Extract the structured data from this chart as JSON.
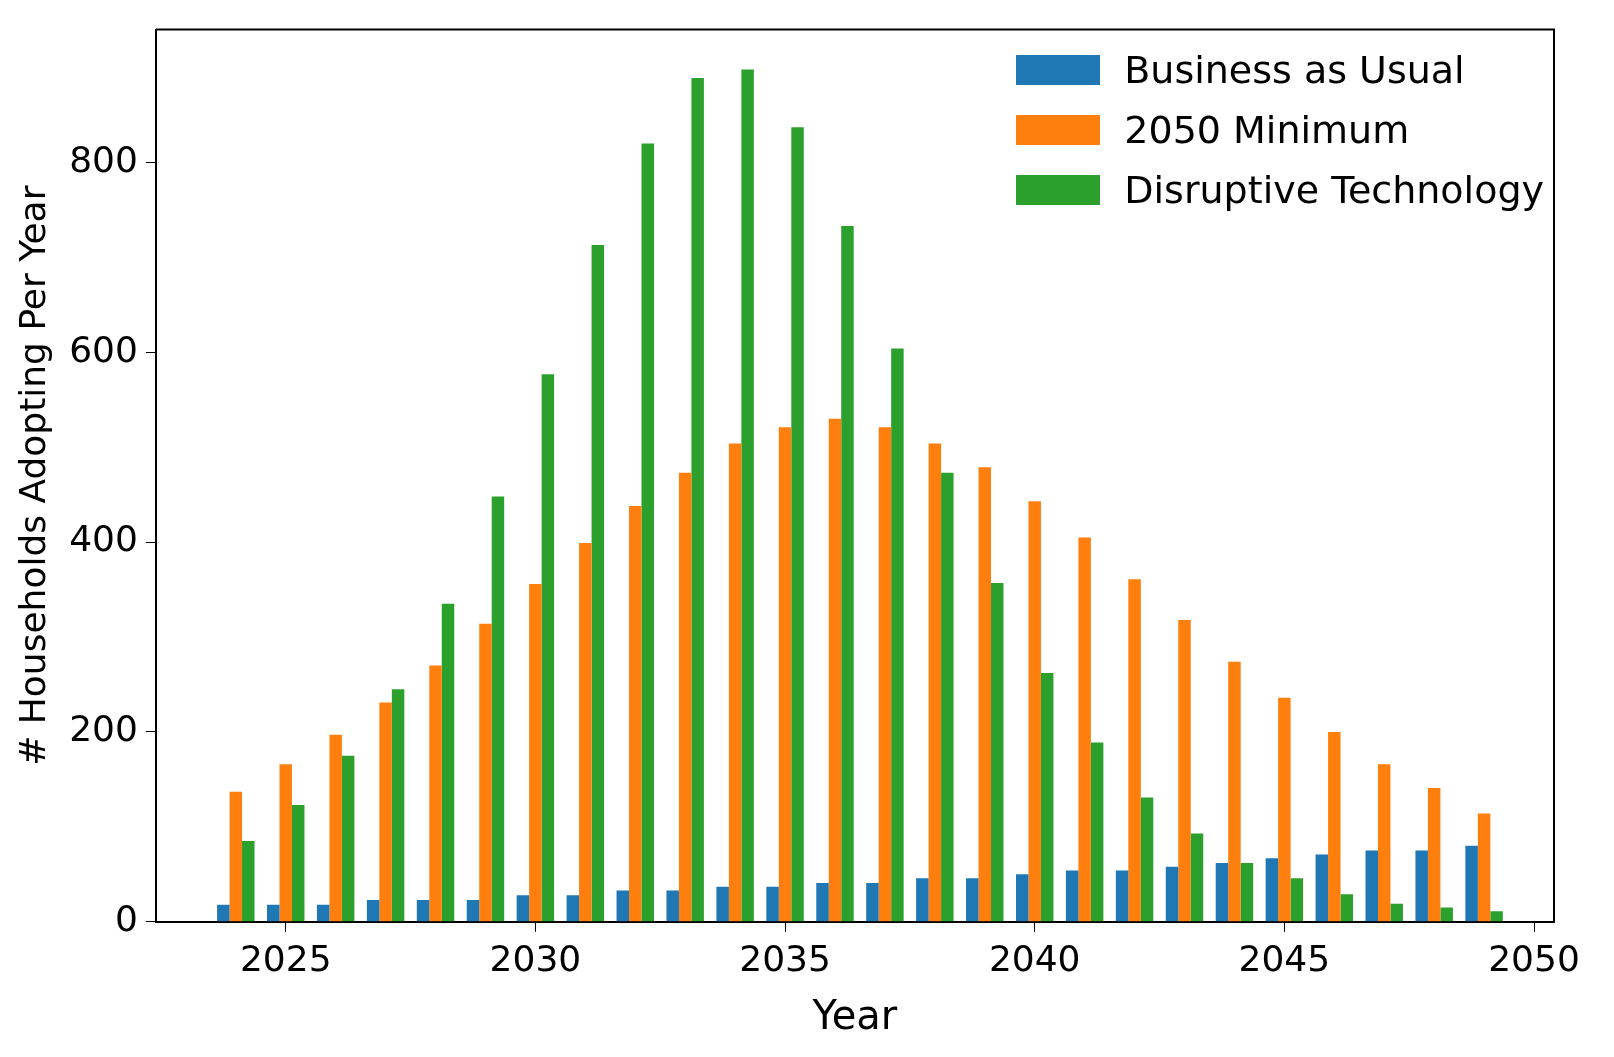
{
  "chart_data": {
    "type": "bar",
    "xlabel": "Year",
    "ylabel": "# Households Adopting Per Year",
    "x": [
      2024,
      2025,
      2026,
      2027,
      2028,
      2029,
      2030,
      2031,
      2032,
      2033,
      2034,
      2035,
      2036,
      2037,
      2038,
      2039,
      2040,
      2041,
      2042,
      2043,
      2044,
      2045,
      2046,
      2047,
      2048,
      2049
    ],
    "series": [
      {
        "name": "Business as Usual",
        "color": "#1f77b4",
        "values": [
          18,
          18,
          18,
          23,
          23,
          23,
          28,
          28,
          33,
          33,
          37,
          37,
          41,
          41,
          46,
          46,
          50,
          54,
          54,
          58,
          62,
          67,
          71,
          75,
          75,
          80
        ]
      },
      {
        "name": "2050 Minimum",
        "color": "#ff7f0e",
        "values": [
          137,
          166,
          197,
          231,
          270,
          314,
          356,
          399,
          438,
          473,
          504,
          521,
          530,
          521,
          504,
          479,
          443,
          405,
          361,
          318,
          274,
          236,
          200,
          166,
          141,
          114
        ]
      },
      {
        "name": "Disruptive Technology",
        "color": "#2ca02c",
        "values": [
          85,
          123,
          175,
          245,
          335,
          448,
          577,
          713,
          820,
          889,
          898,
          837,
          733,
          604,
          473,
          357,
          262,
          189,
          131,
          93,
          62,
          46,
          29,
          19,
          15,
          11
        ]
      }
    ],
    "xlim": [
      2022.4,
      2050.4
    ],
    "xticks": [
      2025,
      2030,
      2035,
      2040,
      2045,
      2050
    ],
    "ylim": [
      0,
      940
    ],
    "yticks": [
      0,
      200,
      400,
      600,
      800
    ],
    "grid": false,
    "legend": "top right"
  }
}
